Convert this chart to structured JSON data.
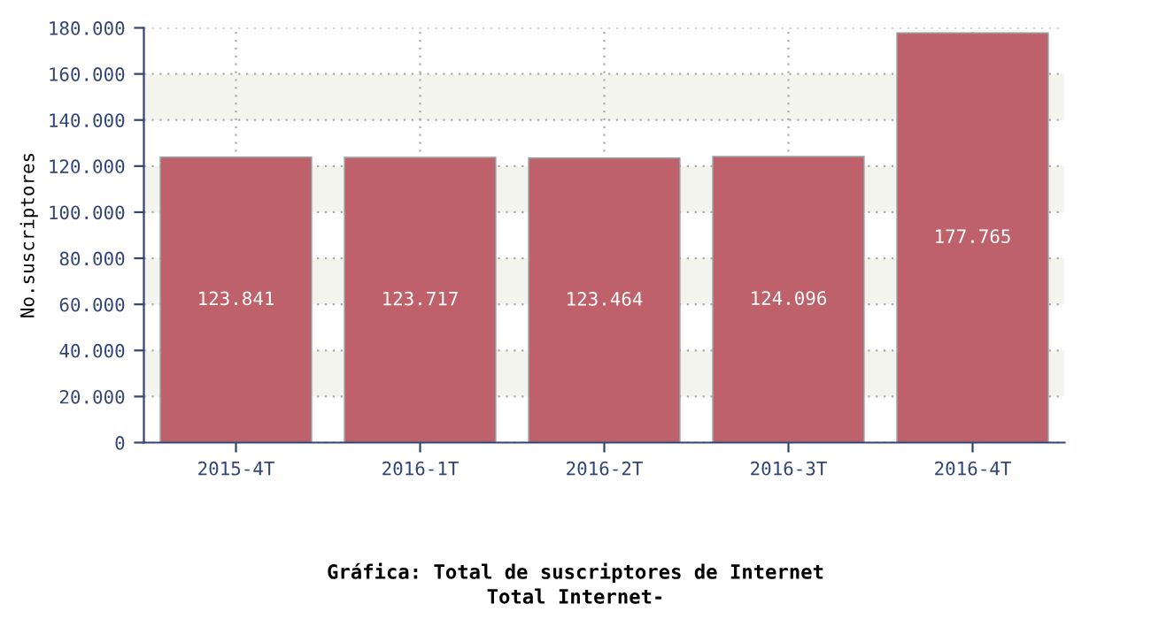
{
  "chart_data": {
    "type": "bar",
    "title": "Gráfica: Total de suscriptores de Internet",
    "subtitle": "Total Internet-",
    "ylabel": "No.suscriptores",
    "categories": [
      "2015-4T",
      "2016-1T",
      "2016-2T",
      "2016-3T",
      "2016-4T"
    ],
    "values": [
      123841,
      123717,
      123464,
      124096,
      177765
    ],
    "value_labels": [
      "123.841",
      "123.717",
      "123.464",
      "124.096",
      "177.765"
    ],
    "color": "#bf616a",
    "ylim": [
      0,
      180000
    ],
    "yticks": [
      0,
      {
        "value": 20000,
        "label": "20.000"
      },
      {
        "value": 40000,
        "label": "40.000"
      },
      {
        "value": 60000,
        "label": "60.000"
      },
      {
        "value": 80000,
        "label": "80.000"
      },
      {
        "value": 100000,
        "label": "100.000"
      },
      {
        "value": 120000,
        "label": "120.000"
      },
      {
        "value": 140000,
        "label": "140.000"
      },
      {
        "value": 160000,
        "label": "160.000"
      },
      {
        "value": 180000,
        "label": "180.000"
      }
    ],
    "bands": [
      {
        "axis": "y",
        "from": 20000,
        "to": 40000,
        "color": "#f4f4ee"
      },
      {
        "axis": "y",
        "from": 60000,
        "to": 80000,
        "color": "#f4f4ee"
      },
      {
        "axis": "y",
        "from": 100000,
        "to": 120000,
        "color": "#f4f4ee"
      },
      {
        "axis": "y",
        "from": 140000,
        "to": 160000,
        "color": "#f4f4ee"
      }
    ],
    "grid": true
  }
}
